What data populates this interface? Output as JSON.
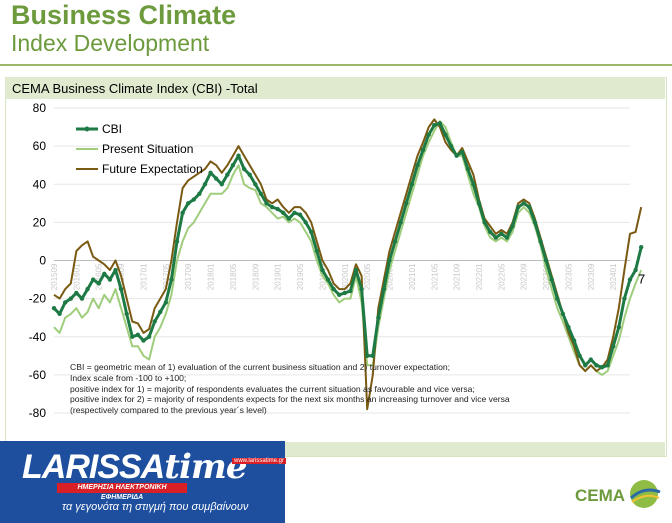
{
  "header": {
    "title": "Business Climate",
    "subtitle": "Index Development"
  },
  "chart_title": "CEMA Business Climate Index (CBI) -Total",
  "note": [
    "CBI = geometric mean of 1) evaluation of the current business situation and 2) turnover expectation;",
    "Index scale from -100 to +100;",
    "positive index for 1) = majority of respondents evaluates the current situation as favourable and vice versa;",
    "positive index for 2) = majority of respondents expects for the next six months an increasing turnover and vice versa (respectively compared to the previous year´s level)"
  ],
  "end_label": "7",
  "logo": {
    "name_a": "LARISSA",
    "name_b": "time",
    "banner": "ΗΜΕΡΗΣΙΑ ΗΛΕΚΤΡΟΝΙΚΗ ΕΦΗΜΕΡΙΔΑ",
    "url": "www.larissatime.gr",
    "tagline": "τα γεγονότα τη στιγμή που συμβαίνουν"
  },
  "brand": "CEMA",
  "colors": {
    "cbi": "#1e7a45",
    "present": "#9fcd7c",
    "future": "#7a5a12",
    "accent": "#6c9a3c"
  },
  "chart_data": {
    "type": "line",
    "x_start": "2015-09",
    "x_count": 104,
    "ylim": [
      -80,
      80
    ],
    "yticks": [
      -80,
      -60,
      -40,
      -20,
      0,
      20,
      40,
      60,
      80
    ],
    "tick_labels": [
      "201509",
      "201601",
      "201605",
      "201609",
      "201701",
      "201705",
      "201709",
      "201801",
      "201805",
      "201809",
      "201901",
      "201905",
      "201909",
      "202001",
      "202005",
      "202009",
      "202101",
      "202105",
      "202109",
      "202201",
      "202205",
      "202209",
      "202301",
      "202305",
      "202309",
      "202401",
      "202405",
      "202409",
      "202501",
      "202505"
    ],
    "legend_position": "top-left",
    "series": [
      {
        "name": "CBI",
        "values": [
          -25,
          -28,
          -22,
          -20,
          -17,
          -20,
          -15,
          -10,
          -12,
          -7,
          -10,
          -5,
          -15,
          -28,
          -40,
          -39,
          -42,
          -40,
          -32,
          -27,
          -22,
          -10,
          10,
          25,
          30,
          32,
          35,
          40,
          46,
          43,
          40,
          45,
          50,
          55,
          48,
          45,
          40,
          35,
          30,
          28,
          27,
          25,
          22,
          25,
          24,
          20,
          15,
          5,
          -5,
          -10,
          -15,
          -18,
          -17,
          -16,
          -5,
          -15,
          -50,
          -50,
          -30,
          -15,
          0,
          10,
          20,
          30,
          40,
          50,
          58,
          66,
          71,
          72,
          66,
          60,
          55,
          57,
          48,
          40,
          30,
          20,
          15,
          12,
          14,
          12,
          18,
          28,
          30,
          28,
          20,
          10,
          0,
          -10,
          -20,
          -28,
          -35,
          -42,
          -50,
          -55,
          -52,
          -55,
          -56,
          -55,
          -45,
          -35,
          -20,
          -10,
          -5,
          7
        ]
      },
      {
        "name": "Present Situation",
        "values": [
          -35,
          -38,
          -30,
          -28,
          -25,
          -30,
          -27,
          -20,
          -25,
          -18,
          -22,
          -15,
          -25,
          -35,
          -45,
          -45,
          -50,
          -52,
          -40,
          -35,
          -28,
          -18,
          0,
          10,
          17,
          20,
          25,
          30,
          35,
          35,
          35,
          38,
          45,
          50,
          40,
          38,
          37,
          30,
          28,
          25,
          22,
          23,
          20,
          22,
          20,
          15,
          10,
          0,
          -8,
          -12,
          -18,
          -22,
          -20,
          -20,
          -8,
          -22,
          -55,
          -55,
          -35,
          -20,
          -5,
          5,
          15,
          25,
          35,
          45,
          55,
          62,
          68,
          73,
          70,
          62,
          55,
          55,
          45,
          35,
          28,
          18,
          12,
          10,
          12,
          10,
          15,
          25,
          28,
          25,
          18,
          8,
          -5,
          -15,
          -25,
          -32,
          -40,
          -48,
          -55,
          -58,
          -55,
          -58,
          -60,
          -58,
          -50,
          -42,
          -30,
          -20,
          -12,
          -5
        ]
      },
      {
        "name": "Future Expectation",
        "values": [
          -18,
          -20,
          -15,
          -12,
          5,
          8,
          10,
          2,
          0,
          -2,
          -5,
          0,
          -8,
          -20,
          -32,
          -33,
          -38,
          -36,
          -25,
          -20,
          -15,
          0,
          20,
          38,
          42,
          44,
          46,
          48,
          52,
          50,
          46,
          50,
          55,
          60,
          55,
          50,
          45,
          40,
          32,
          30,
          32,
          28,
          25,
          28,
          28,
          25,
          20,
          10,
          0,
          -5,
          -12,
          -15,
          -15,
          -12,
          -2,
          -8,
          -78,
          -60,
          -25,
          -10,
          5,
          15,
          25,
          35,
          45,
          55,
          62,
          70,
          74,
          70,
          62,
          58,
          55,
          59,
          52,
          45,
          32,
          22,
          18,
          14,
          16,
          14,
          20,
          30,
          32,
          30,
          22,
          12,
          2,
          -8,
          -18,
          -28,
          -38,
          -45,
          -55,
          -58,
          -55,
          -58,
          -56,
          -52,
          -40,
          -25,
          -5,
          14,
          15,
          28
        ]
      }
    ]
  }
}
